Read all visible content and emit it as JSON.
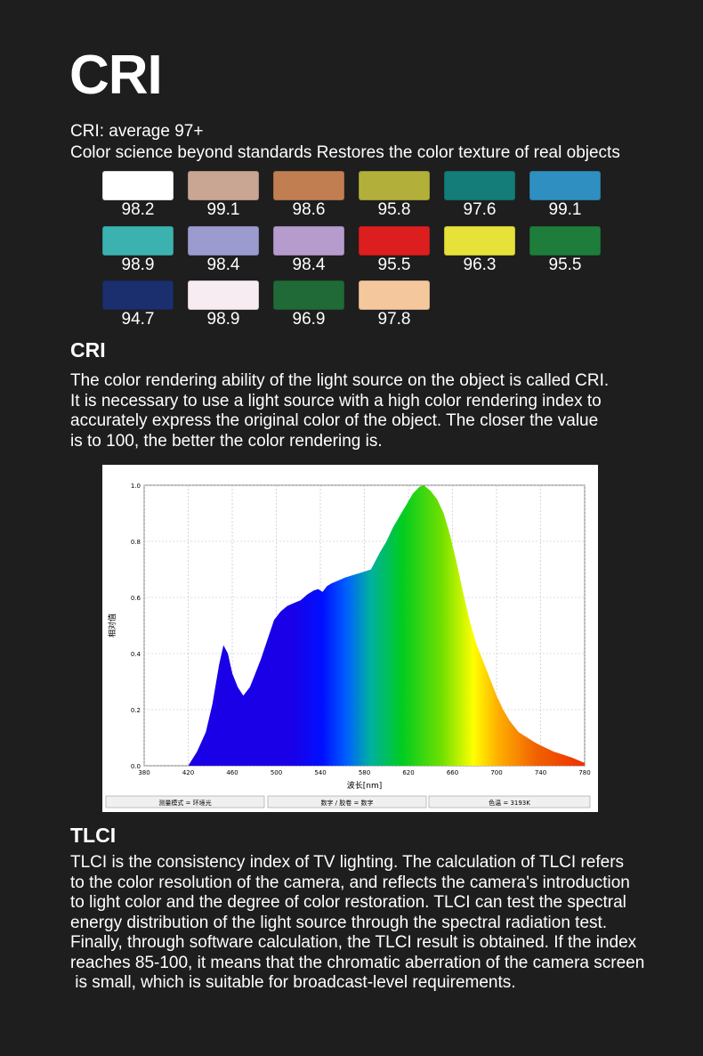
{
  "header": {
    "title": "CRI"
  },
  "intro": {
    "line1": "CRI: average 97+",
    "line2": "Color science beyond standards Restores the color texture of real objects"
  },
  "swatches": [
    {
      "value": "98.2",
      "color": "#ffffff"
    },
    {
      "value": "99.1",
      "color": "#c9a593"
    },
    {
      "value": "98.6",
      "color": "#c17f51"
    },
    {
      "value": "95.8",
      "color": "#b2b03a"
    },
    {
      "value": "97.6",
      "color": "#147d7a"
    },
    {
      "value": "99.1",
      "color": "#2f8fc0"
    },
    {
      "value": "98.9",
      "color": "#3bb2b0"
    },
    {
      "value": "98.4",
      "color": "#9b9bd0"
    },
    {
      "value": "98.4",
      "color": "#b59ccd"
    },
    {
      "value": "95.5",
      "color": "#dd1e1e"
    },
    {
      "value": "96.3",
      "color": "#e6e23a"
    },
    {
      "value": "95.5",
      "color": "#1e7d3b"
    },
    {
      "value": "94.7",
      "color": "#1b2f6e"
    },
    {
      "value": "98.9",
      "color": "#f6ecf2"
    },
    {
      "value": "96.9",
      "color": "#1f6a37"
    },
    {
      "value": "97.8",
      "color": "#f4c79d"
    }
  ],
  "cri_section": {
    "heading": "CRI",
    "lines": [
      "The color rendering ability of the light source on the object is called CRI.",
      "It is necessary to use a light source with a high color rendering index to",
      "accurately express the original color of the object. The closer the value",
      "is to 100, the better the color rendering is."
    ]
  },
  "chart_data": {
    "type": "area",
    "xlabel": "波长[nm]",
    "ylabel": "相对值",
    "xlim": [
      380,
      780
    ],
    "ylim": [
      0,
      1.0
    ],
    "xticks": [
      "380",
      "420",
      "460",
      "500",
      "540",
      "580",
      "620",
      "660",
      "700",
      "740",
      "780"
    ],
    "yticks": [
      "0.0",
      "0.2",
      "0.4",
      "0.6",
      "0.8",
      "1.0"
    ],
    "grid": true,
    "x": [
      420,
      428,
      436,
      442,
      448,
      452,
      456,
      460,
      465,
      470,
      476,
      480,
      486,
      492,
      498,
      504,
      510,
      516,
      522,
      528,
      534,
      538,
      542,
      546,
      550,
      556,
      562,
      570,
      578,
      586,
      594,
      600,
      606,
      612,
      618,
      624,
      630,
      634,
      640,
      646,
      652,
      658,
      664,
      670,
      676,
      682,
      688,
      694,
      700,
      706,
      712,
      720,
      728,
      736,
      744,
      752,
      760,
      768,
      774,
      780
    ],
    "y": [
      0.0,
      0.05,
      0.12,
      0.22,
      0.36,
      0.43,
      0.4,
      0.33,
      0.28,
      0.25,
      0.28,
      0.32,
      0.38,
      0.45,
      0.52,
      0.55,
      0.57,
      0.58,
      0.59,
      0.61,
      0.625,
      0.63,
      0.62,
      0.64,
      0.65,
      0.66,
      0.67,
      0.68,
      0.69,
      0.7,
      0.76,
      0.8,
      0.85,
      0.89,
      0.93,
      0.97,
      0.995,
      1.0,
      0.98,
      0.95,
      0.9,
      0.82,
      0.72,
      0.61,
      0.51,
      0.43,
      0.37,
      0.31,
      0.25,
      0.2,
      0.16,
      0.12,
      0.1,
      0.08,
      0.065,
      0.05,
      0.04,
      0.03,
      0.02,
      0.01
    ],
    "status_bar": [
      "测量模式 = 环境光",
      "数字 / 胶卷 = 数字",
      "色温 = 3193K"
    ]
  },
  "tlci_section": {
    "heading": "TLCI",
    "lines": [
      "TLCI is the consistency index of TV lighting. The calculation of TLCI refers",
      "to the color resolution of the camera, and reflects the camera's introduction",
      "to light color and the degree of color restoration. TLCI can test the spectral",
      "energy distribution of the light source through the spectral radiation test.",
      "Finally, through software calculation, the TLCI result is obtained. If the index",
      "reaches 85-100, it means that the chromatic aberration of the camera screen",
      " is small, which is suitable for broadcast-level requirements."
    ]
  }
}
